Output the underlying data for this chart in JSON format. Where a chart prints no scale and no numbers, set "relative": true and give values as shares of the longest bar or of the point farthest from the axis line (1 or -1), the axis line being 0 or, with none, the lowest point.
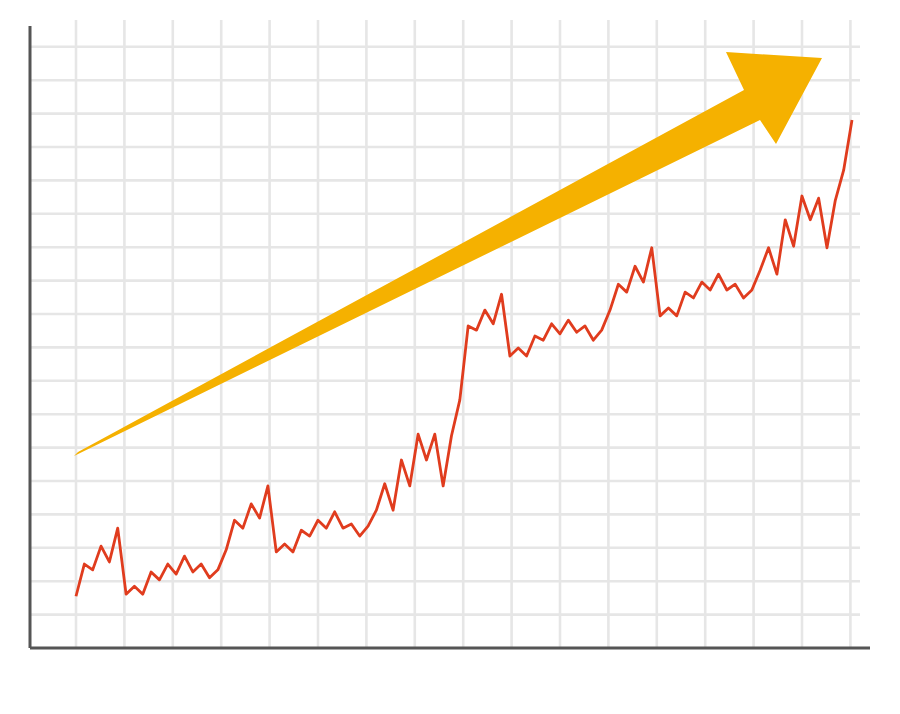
{
  "chart_data": {
    "type": "line",
    "relative": true,
    "grid": true,
    "marker": "none",
    "line_style": "solid",
    "categories": [
      null,
      null,
      null,
      null,
      null,
      null,
      null,
      null,
      null,
      null,
      null,
      null,
      null,
      null,
      null,
      null,
      null,
      null,
      null,
      null,
      null,
      null,
      null,
      null,
      null,
      null,
      null,
      null,
      null,
      null,
      null,
      null,
      null,
      null,
      null,
      null,
      null,
      null,
      null,
      null,
      null,
      null,
      null,
      null,
      null,
      null,
      null,
      null,
      null,
      null,
      null,
      null,
      null,
      null,
      null,
      null,
      null,
      null,
      null,
      null,
      null,
      null,
      null,
      null,
      null,
      null,
      null,
      null,
      null,
      null,
      null,
      null,
      null,
      null,
      null,
      null,
      null,
      null,
      null,
      null,
      null,
      null,
      null,
      null,
      null,
      null,
      null,
      null,
      null,
      null,
      null,
      null,
      null,
      null
    ],
    "series": [
      {
        "color": "#e03c1e",
        "values": [
          0.098,
          0.159,
          0.148,
          0.193,
          0.163,
          0.227,
          0.102,
          0.117,
          0.102,
          0.144,
          0.129,
          0.159,
          0.14,
          0.174,
          0.144,
          0.159,
          0.133,
          0.148,
          0.186,
          0.242,
          0.227,
          0.273,
          0.246,
          0.307,
          0.182,
          0.197,
          0.182,
          0.223,
          0.212,
          0.242,
          0.227,
          0.258,
          0.227,
          0.235,
          0.212,
          0.231,
          0.261,
          0.311,
          0.261,
          0.356,
          0.307,
          0.405,
          0.356,
          0.405,
          0.307,
          0.402,
          0.47,
          0.61,
          0.602,
          0.64,
          0.614,
          0.67,
          0.553,
          0.568,
          0.553,
          0.591,
          0.583,
          0.614,
          0.595,
          0.621,
          0.598,
          0.61,
          0.583,
          0.602,
          0.64,
          0.689,
          0.674,
          0.723,
          0.693,
          0.758,
          0.629,
          0.644,
          0.629,
          0.674,
          0.663,
          0.693,
          0.678,
          0.708,
          0.678,
          0.689,
          0.663,
          0.678,
          0.716,
          0.758,
          0.708,
          0.811,
          0.761,
          0.856,
          0.811,
          0.852,
          0.758,
          0.848,
          0.905,
          1
        ]
      }
    ]
  }
}
